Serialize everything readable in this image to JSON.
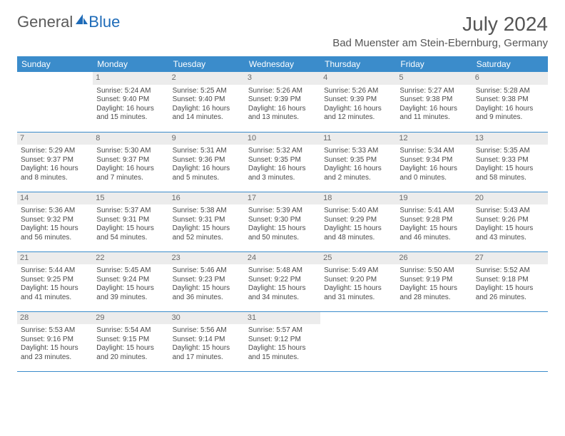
{
  "brand": {
    "part1": "General",
    "part2": "Blue"
  },
  "colors": {
    "header_bg": "#3b8ccb",
    "header_text": "#ffffff",
    "daynum_bg": "#ececec",
    "daynum_text": "#6a6a6a",
    "body_text": "#4a4a4a",
    "row_divider": "#3b8ccb",
    "title_text": "#555555",
    "logo_blue": "#1e6bb8"
  },
  "title": "July 2024",
  "location": "Bad Muenster am Stein-Ebernburg, Germany",
  "weekdays": [
    "Sunday",
    "Monday",
    "Tuesday",
    "Wednesday",
    "Thursday",
    "Friday",
    "Saturday"
  ],
  "weeks": [
    [
      {
        "day": "",
        "lines": []
      },
      {
        "day": "1",
        "lines": [
          "Sunrise: 5:24 AM",
          "Sunset: 9:40 PM",
          "Daylight: 16 hours",
          "and 15 minutes."
        ]
      },
      {
        "day": "2",
        "lines": [
          "Sunrise: 5:25 AM",
          "Sunset: 9:40 PM",
          "Daylight: 16 hours",
          "and 14 minutes."
        ]
      },
      {
        "day": "3",
        "lines": [
          "Sunrise: 5:26 AM",
          "Sunset: 9:39 PM",
          "Daylight: 16 hours",
          "and 13 minutes."
        ]
      },
      {
        "day": "4",
        "lines": [
          "Sunrise: 5:26 AM",
          "Sunset: 9:39 PM",
          "Daylight: 16 hours",
          "and 12 minutes."
        ]
      },
      {
        "day": "5",
        "lines": [
          "Sunrise: 5:27 AM",
          "Sunset: 9:38 PM",
          "Daylight: 16 hours",
          "and 11 minutes."
        ]
      },
      {
        "day": "6",
        "lines": [
          "Sunrise: 5:28 AM",
          "Sunset: 9:38 PM",
          "Daylight: 16 hours",
          "and 9 minutes."
        ]
      }
    ],
    [
      {
        "day": "7",
        "lines": [
          "Sunrise: 5:29 AM",
          "Sunset: 9:37 PM",
          "Daylight: 16 hours",
          "and 8 minutes."
        ]
      },
      {
        "day": "8",
        "lines": [
          "Sunrise: 5:30 AM",
          "Sunset: 9:37 PM",
          "Daylight: 16 hours",
          "and 7 minutes."
        ]
      },
      {
        "day": "9",
        "lines": [
          "Sunrise: 5:31 AM",
          "Sunset: 9:36 PM",
          "Daylight: 16 hours",
          "and 5 minutes."
        ]
      },
      {
        "day": "10",
        "lines": [
          "Sunrise: 5:32 AM",
          "Sunset: 9:35 PM",
          "Daylight: 16 hours",
          "and 3 minutes."
        ]
      },
      {
        "day": "11",
        "lines": [
          "Sunrise: 5:33 AM",
          "Sunset: 9:35 PM",
          "Daylight: 16 hours",
          "and 2 minutes."
        ]
      },
      {
        "day": "12",
        "lines": [
          "Sunrise: 5:34 AM",
          "Sunset: 9:34 PM",
          "Daylight: 16 hours",
          "and 0 minutes."
        ]
      },
      {
        "day": "13",
        "lines": [
          "Sunrise: 5:35 AM",
          "Sunset: 9:33 PM",
          "Daylight: 15 hours",
          "and 58 minutes."
        ]
      }
    ],
    [
      {
        "day": "14",
        "lines": [
          "Sunrise: 5:36 AM",
          "Sunset: 9:32 PM",
          "Daylight: 15 hours",
          "and 56 minutes."
        ]
      },
      {
        "day": "15",
        "lines": [
          "Sunrise: 5:37 AM",
          "Sunset: 9:31 PM",
          "Daylight: 15 hours",
          "and 54 minutes."
        ]
      },
      {
        "day": "16",
        "lines": [
          "Sunrise: 5:38 AM",
          "Sunset: 9:31 PM",
          "Daylight: 15 hours",
          "and 52 minutes."
        ]
      },
      {
        "day": "17",
        "lines": [
          "Sunrise: 5:39 AM",
          "Sunset: 9:30 PM",
          "Daylight: 15 hours",
          "and 50 minutes."
        ]
      },
      {
        "day": "18",
        "lines": [
          "Sunrise: 5:40 AM",
          "Sunset: 9:29 PM",
          "Daylight: 15 hours",
          "and 48 minutes."
        ]
      },
      {
        "day": "19",
        "lines": [
          "Sunrise: 5:41 AM",
          "Sunset: 9:28 PM",
          "Daylight: 15 hours",
          "and 46 minutes."
        ]
      },
      {
        "day": "20",
        "lines": [
          "Sunrise: 5:43 AM",
          "Sunset: 9:26 PM",
          "Daylight: 15 hours",
          "and 43 minutes."
        ]
      }
    ],
    [
      {
        "day": "21",
        "lines": [
          "Sunrise: 5:44 AM",
          "Sunset: 9:25 PM",
          "Daylight: 15 hours",
          "and 41 minutes."
        ]
      },
      {
        "day": "22",
        "lines": [
          "Sunrise: 5:45 AM",
          "Sunset: 9:24 PM",
          "Daylight: 15 hours",
          "and 39 minutes."
        ]
      },
      {
        "day": "23",
        "lines": [
          "Sunrise: 5:46 AM",
          "Sunset: 9:23 PM",
          "Daylight: 15 hours",
          "and 36 minutes."
        ]
      },
      {
        "day": "24",
        "lines": [
          "Sunrise: 5:48 AM",
          "Sunset: 9:22 PM",
          "Daylight: 15 hours",
          "and 34 minutes."
        ]
      },
      {
        "day": "25",
        "lines": [
          "Sunrise: 5:49 AM",
          "Sunset: 9:20 PM",
          "Daylight: 15 hours",
          "and 31 minutes."
        ]
      },
      {
        "day": "26",
        "lines": [
          "Sunrise: 5:50 AM",
          "Sunset: 9:19 PM",
          "Daylight: 15 hours",
          "and 28 minutes."
        ]
      },
      {
        "day": "27",
        "lines": [
          "Sunrise: 5:52 AM",
          "Sunset: 9:18 PM",
          "Daylight: 15 hours",
          "and 26 minutes."
        ]
      }
    ],
    [
      {
        "day": "28",
        "lines": [
          "Sunrise: 5:53 AM",
          "Sunset: 9:16 PM",
          "Daylight: 15 hours",
          "and 23 minutes."
        ]
      },
      {
        "day": "29",
        "lines": [
          "Sunrise: 5:54 AM",
          "Sunset: 9:15 PM",
          "Daylight: 15 hours",
          "and 20 minutes."
        ]
      },
      {
        "day": "30",
        "lines": [
          "Sunrise: 5:56 AM",
          "Sunset: 9:14 PM",
          "Daylight: 15 hours",
          "and 17 minutes."
        ]
      },
      {
        "day": "31",
        "lines": [
          "Sunrise: 5:57 AM",
          "Sunset: 9:12 PM",
          "Daylight: 15 hours",
          "and 15 minutes."
        ]
      },
      {
        "day": "",
        "lines": []
      },
      {
        "day": "",
        "lines": []
      },
      {
        "day": "",
        "lines": []
      }
    ]
  ]
}
